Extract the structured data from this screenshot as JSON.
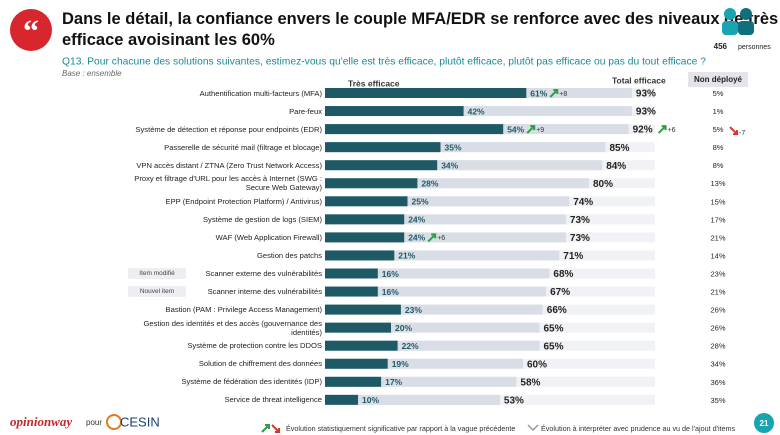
{
  "chart_data": {
    "type": "bar",
    "title": "Dans le détail, la confiance envers le couple MFA/EDR se renforce avec des niveaux de très efficace avoisinant les 60%",
    "subtitle": "Q13. Pour chacune des solutions suivantes, estimez-vous qu'elle est très efficace, plutôt efficace, plutôt pas efficace ou pas du tout efficace ?",
    "base": "Base : ensemble",
    "respondents": "456",
    "respondents_unit": "personnes",
    "xlim": [
      0,
      100
    ],
    "categories": [
      "Authentification multi-facteurs (MFA)",
      "Pare-feux",
      "Système de détection et réponse pour endpoints (EDR)",
      "Passerelle de sécurité mail (filtrage et blocage)",
      "VPN accès distant / ZTNA (Zero Trust Network Access)",
      "Proxy et filtrage d'URL pour les accès à Internet (SWG : Secure Web Gateway)",
      "EPP (Endpoint Protection Platform) / Antivirus)",
      "Système de gestion de logs (SIEM)",
      "WAF (Web Application Firewall)",
      "Gestion des patchs",
      "Scanner externe des vulnérabilités",
      "Scanner interne des vulnérabilités",
      "Bastion (PAM : Privilege Access Management)",
      "Gestion des identités et des accès (gouvernance des identités)",
      "Système de protection contre les DDOS",
      "Solution de chiffrement des données",
      "Système de fédération des identités (IDP)",
      "Service de threat intelligence"
    ],
    "tags": [
      null,
      null,
      null,
      null,
      null,
      null,
      null,
      null,
      null,
      null,
      "Item modifié",
      "Nouvel item",
      null,
      null,
      null,
      null,
      null,
      null
    ],
    "series": [
      {
        "name": "Très efficace",
        "color": "#1d5a66",
        "values": [
          61,
          42,
          54,
          35,
          34,
          28,
          25,
          24,
          24,
          21,
          16,
          16,
          23,
          20,
          22,
          19,
          17,
          10
        ],
        "value_labels": [
          "61%",
          "42%",
          "54%",
          "35%",
          "34%",
          "28%",
          "25%",
          "24%",
          "24%",
          "21%",
          "16%",
          "16%",
          "23%",
          "20%",
          "22%",
          "19%",
          "17%",
          "10%"
        ],
        "changes": [
          8,
          null,
          9,
          null,
          null,
          null,
          null,
          null,
          6,
          null,
          null,
          null,
          null,
          null,
          null,
          null,
          null,
          null
        ],
        "change_labels": [
          "+8",
          null,
          "+9",
          null,
          null,
          null,
          null,
          null,
          "+6",
          null,
          null,
          null,
          null,
          null,
          null,
          null,
          null,
          null
        ]
      },
      {
        "name": "Total efficace",
        "color": "#d9dde6",
        "values": [
          93,
          93,
          92,
          85,
          84,
          80,
          74,
          73,
          73,
          71,
          68,
          67,
          66,
          65,
          65,
          60,
          58,
          53
        ],
        "value_labels": [
          "93%",
          "93%",
          "92%",
          "85%",
          "84%",
          "80%",
          "74%",
          "73%",
          "73%",
          "71%",
          "68%",
          "67%",
          "66%",
          "65%",
          "65%",
          "60%",
          "58%",
          "53%"
        ],
        "changes": [
          null,
          null,
          6,
          null,
          null,
          null,
          null,
          null,
          null,
          null,
          null,
          null,
          null,
          null,
          null,
          null,
          null,
          null
        ],
        "change_labels": [
          null,
          null,
          "+6",
          null,
          null,
          null,
          null,
          null,
          null,
          null,
          null,
          null,
          null,
          null,
          null,
          null,
          null,
          null
        ]
      }
    ],
    "not_deployed": {
      "name": "Non déployé",
      "values": [
        5,
        1,
        5,
        8,
        8,
        13,
        15,
        17,
        21,
        14,
        23,
        21,
        26,
        26,
        28,
        34,
        36,
        35
      ],
      "value_labels": [
        "5%",
        "1%",
        "5%",
        "8%",
        "8%",
        "13%",
        "15%",
        "17%",
        "21%",
        "14%",
        "23%",
        "21%",
        "26%",
        "26%",
        "28%",
        "34%",
        "36%",
        "35%"
      ],
      "changes": [
        null,
        null,
        -7,
        null,
        null,
        null,
        null,
        null,
        null,
        null,
        null,
        null,
        null,
        null,
        null,
        null,
        null,
        null
      ],
      "change_labels": [
        null,
        null,
        "-7",
        null,
        null,
        null,
        null,
        null,
        null,
        null,
        null,
        null,
        null,
        null,
        null,
        null,
        null,
        null
      ]
    },
    "legend_significant": "Évolution statistiquement significative par rapport à la vague précédente",
    "legend_caution": "Évolution à interpréter avec prudence au vu de l'ajout d'items",
    "brand": "opinionway",
    "brand_link": "pour",
    "client": "CESIN",
    "page": "21"
  }
}
